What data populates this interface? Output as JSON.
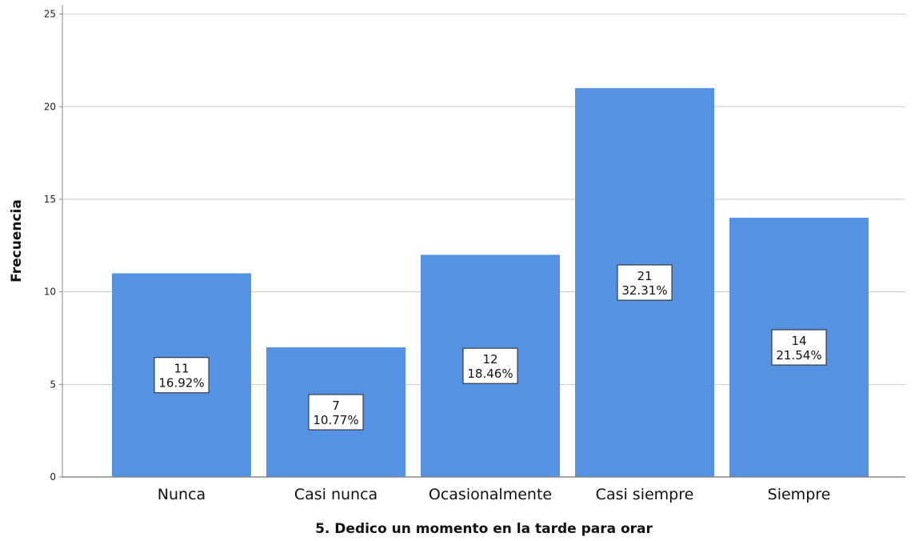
{
  "chart_data": {
    "type": "bar",
    "title": "",
    "xlabel": "5. Dedico un momento en la tarde para orar",
    "ylabel": "Frecuencia",
    "categories": [
      "Nunca",
      "Casi nunca",
      "Ocasionalmente",
      "Casi siempre",
      "Siempre"
    ],
    "values": [
      11,
      7,
      12,
      21,
      14
    ],
    "percent_labels": [
      "16.92%",
      "10.77%",
      "18.46%",
      "32.31%",
      "21.54%"
    ],
    "y_ticks": [
      0,
      5,
      10,
      15,
      20,
      25
    ],
    "ylim": [
      0,
      25.5
    ],
    "grid": true,
    "bar_color": "#5593e2",
    "grid_color": "#c8c8c8",
    "axis_color": "#888888"
  }
}
